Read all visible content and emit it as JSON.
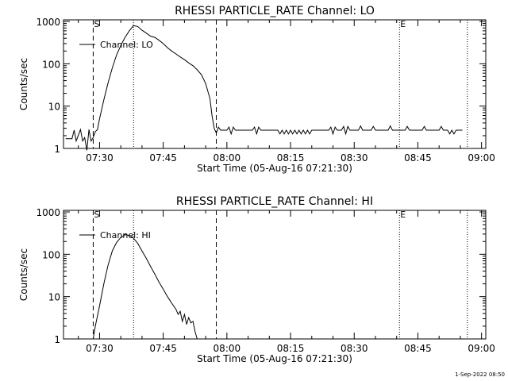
{
  "chart_data": [
    {
      "type": "line",
      "title": "RHESSI PARTICLE_RATE Channel: LO",
      "xlabel": "Start Time (05-Aug-16 07:21:30)",
      "ylabel": "Counts/sec",
      "yscale": "log",
      "xlim": [
        "07:21:30",
        "09:01:00"
      ],
      "ylim": [
        1,
        1000
      ],
      "xticks": [
        "07:30",
        "07:45",
        "08:00",
        "08:15",
        "08:30",
        "08:45",
        "09:00"
      ],
      "yticks": [
        "1",
        "10",
        "100",
        "1000"
      ],
      "legend": {
        "label": "Channel: LO",
        "position": "top-left"
      },
      "markers": [
        {
          "label": "S",
          "time": "07:28:30",
          "style": "dashed"
        },
        {
          "label": "",
          "time": "07:38:00",
          "style": "dotted"
        },
        {
          "label": "",
          "time": "07:57:30",
          "style": "dashed"
        },
        {
          "label": "E",
          "time": "08:40:40",
          "style": "dotted"
        },
        {
          "label": "",
          "time": "08:56:40",
          "style": "dotted"
        }
      ],
      "series": [
        {
          "name": "Channel: LO",
          "x": [
            "07:22:00",
            "07:23:30",
            "07:24:00",
            "07:24:30",
            "07:25:30",
            "07:26:00",
            "07:26:30",
            "07:27:00",
            "07:27:30",
            "07:28:00",
            "07:28:30",
            "07:29:00",
            "07:29:30",
            "07:30:00",
            "07:31:00",
            "07:32:00",
            "07:33:00",
            "07:34:00",
            "07:35:00",
            "07:36:00",
            "07:37:00",
            "07:38:00",
            "07:39:00",
            "07:40:00",
            "07:41:00",
            "07:42:00",
            "07:43:00",
            "07:44:00",
            "07:45:00",
            "07:46:00",
            "07:47:00",
            "07:48:00",
            "07:49:00",
            "07:50:00",
            "07:51:00",
            "07:52:00",
            "07:53:00",
            "07:54:00",
            "07:55:00",
            "07:56:00",
            "07:56:30",
            "07:57:00",
            "07:57:30",
            "07:58:00",
            "07:58:30",
            "07:59:00",
            "08:00:00",
            "08:00:30",
            "08:01:00",
            "08:01:30",
            "08:02:00",
            "08:03:00",
            "08:06:00",
            "08:06:30",
            "08:07:00",
            "08:07:30",
            "08:08:00",
            "08:10:00",
            "08:12:00",
            "08:12:30",
            "08:13:00",
            "08:13:30",
            "08:14:00",
            "08:14:30",
            "08:15:00",
            "08:15:30",
            "08:16:00",
            "08:16:30",
            "08:17:00",
            "08:17:30",
            "08:18:00",
            "08:18:30",
            "08:19:00",
            "08:19:30",
            "08:20:00",
            "08:21:00",
            "08:24:00",
            "08:24:30",
            "08:25:00",
            "08:25:30",
            "08:26:00",
            "08:27:00",
            "08:27:30",
            "08:28:00",
            "08:28:30",
            "08:29:00",
            "08:31:00",
            "08:31:30",
            "08:32:00",
            "08:34:00",
            "08:34:30",
            "08:35:00",
            "08:38:00",
            "08:38:30",
            "08:39:00",
            "08:42:00",
            "08:42:30",
            "08:43:00",
            "08:46:00",
            "08:46:30",
            "08:47:00",
            "08:50:00",
            "08:50:30",
            "08:51:00",
            "08:51:30",
            "08:52:00",
            "08:52:30",
            "08:53:00",
            "08:53:30",
            "08:54:00",
            "08:55:30"
          ],
          "values": [
            1.7,
            1.7,
            2.7,
            1.5,
            2.8,
            1.5,
            1.8,
            0.9,
            2.8,
            1.5,
            1.8,
            2.5,
            2.8,
            5,
            14,
            35,
            80,
            160,
            270,
            420,
            600,
            800,
            760,
            620,
            530,
            450,
            420,
            360,
            300,
            240,
            200,
            170,
            145,
            125,
            105,
            90,
            72,
            55,
            34,
            15,
            6,
            3,
            2.3,
            3.2,
            2.7,
            2.7,
            2.7,
            3.2,
            2.2,
            3.2,
            2.7,
            2.7,
            2.7,
            3.2,
            2.2,
            3.2,
            2.7,
            2.7,
            2.7,
            2.2,
            2.7,
            2.2,
            2.7,
            2.2,
            2.7,
            2.2,
            2.7,
            2.2,
            2.7,
            2.2,
            2.7,
            2.2,
            2.7,
            2.2,
            2.7,
            2.7,
            2.7,
            3.2,
            2.2,
            3.2,
            2.7,
            2.7,
            3.3,
            2.2,
            3.3,
            2.7,
            2.7,
            3.4,
            2.7,
            2.7,
            3.3,
            2.7,
            2.7,
            3.4,
            2.7,
            2.7,
            3.3,
            2.7,
            2.7,
            3.3,
            2.7,
            2.7,
            3.3,
            2.7,
            2.7,
            2.7,
            2.2,
            2.7,
            2.2,
            2.7,
            2.7
          ]
        }
      ]
    },
    {
      "type": "line",
      "title": "RHESSI PARTICLE_RATE Channel: HI",
      "xlabel": "Start Time (05-Aug-16 07:21:30)",
      "ylabel": "Counts/sec",
      "yscale": "log",
      "xlim": [
        "07:21:30",
        "09:01:00"
      ],
      "ylim": [
        1,
        1000
      ],
      "xticks": [
        "07:30",
        "07:45",
        "08:00",
        "08:15",
        "08:30",
        "08:45",
        "09:00"
      ],
      "yticks": [
        "1",
        "10",
        "100",
        "1000"
      ],
      "legend": {
        "label": "Channel: HI",
        "position": "top-left"
      },
      "markers": [
        {
          "label": "S",
          "time": "07:28:30",
          "style": "dashed"
        },
        {
          "label": "",
          "time": "07:38:00",
          "style": "dotted"
        },
        {
          "label": "",
          "time": "07:57:30",
          "style": "dashed"
        },
        {
          "label": "E",
          "time": "08:40:40",
          "style": "dotted"
        },
        {
          "label": "",
          "time": "08:56:40",
          "style": "dotted"
        }
      ],
      "series": [
        {
          "name": "Channel: HI",
          "x": [
            "07:28:30",
            "07:29:00",
            "07:30:00",
            "07:31:00",
            "07:32:00",
            "07:33:00",
            "07:34:00",
            "07:35:00",
            "07:36:00",
            "07:37:00",
            "07:38:00",
            "07:39:00",
            "07:40:00",
            "07:41:00",
            "07:42:00",
            "07:43:00",
            "07:44:00",
            "07:45:00",
            "07:46:00",
            "07:47:00",
            "07:48:00",
            "07:48:30",
            "07:49:00",
            "07:49:30",
            "07:50:00",
            "07:50:30",
            "07:51:00",
            "07:51:30",
            "07:52:00",
            "07:52:30",
            "07:53:00"
          ],
          "values": [
            1,
            2,
            6,
            20,
            55,
            120,
            190,
            250,
            290,
            280,
            240,
            180,
            120,
            80,
            52,
            34,
            22,
            15,
            10,
            7,
            5,
            3.8,
            4.5,
            2.6,
            3.8,
            2.2,
            3.2,
            2.4,
            2.6,
            1.5,
            1
          ]
        }
      ]
    }
  ],
  "footer": {
    "timestamp": "1-Sep-2022 08:50"
  }
}
